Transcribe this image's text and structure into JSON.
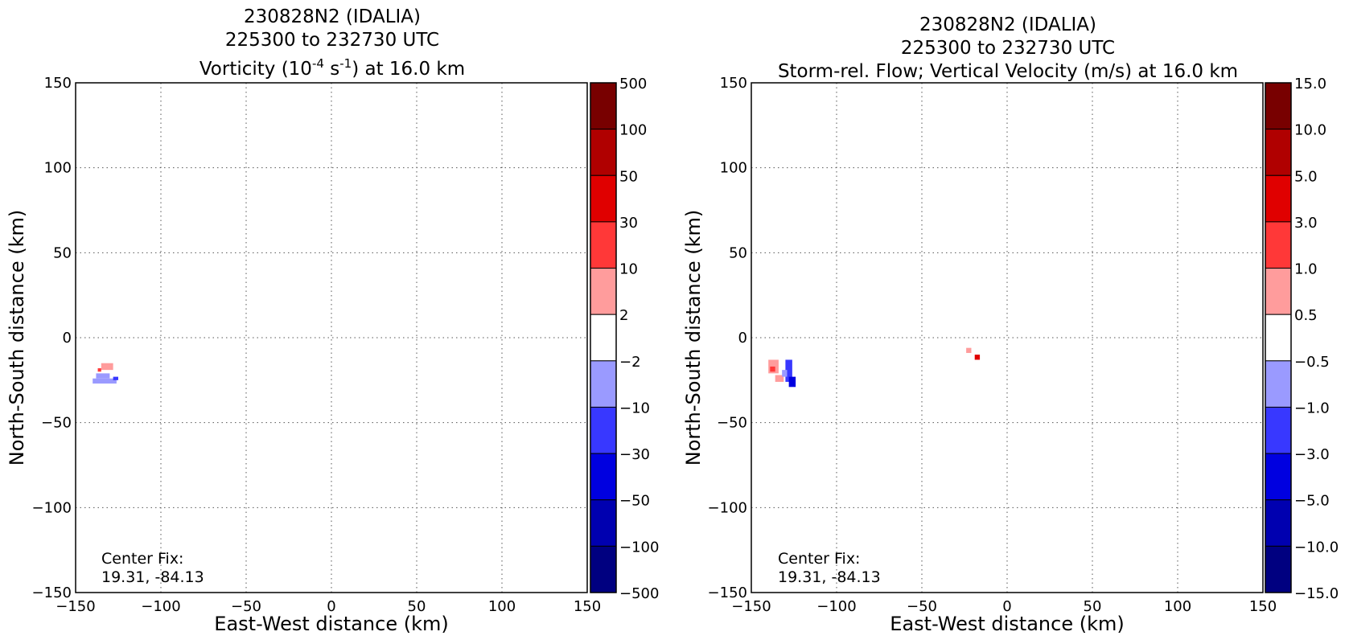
{
  "panels": [
    {
      "title_lines": [
        "230828N2 (IDALIA)",
        "225300 to 232730 UTC"
      ],
      "title_var": {
        "pre": "Vorticity (10",
        "sup1": "-4",
        "mid": " s",
        "sup2": "-1",
        "post": ") at 16.0 km"
      },
      "xlabel": "East-West distance (km)",
      "ylabel": "North-South distance (km)",
      "note": [
        "Center Fix:",
        "19.31, -84.13"
      ]
    },
    {
      "title_lines": [
        "230828N2 (IDALIA)",
        "225300 to 232730 UTC",
        "Storm-rel. Flow; Vertical Velocity (m/s) at 16.0 km"
      ],
      "xlabel": "East-West distance (km)",
      "ylabel": "North-South distance (km)",
      "note": [
        "Center Fix:",
        "19.31, -84.13"
      ]
    }
  ],
  "chart_data": [
    {
      "type": "heatmap",
      "field": "Vorticity",
      "xlim": [
        -150,
        150
      ],
      "ylim": [
        -150,
        150
      ],
      "xticks": [
        "−150",
        "−100",
        "−50",
        "0",
        "50",
        "100",
        "150"
      ],
      "yticks": [
        "150",
        "100",
        "50",
        "0",
        "−50",
        "−100",
        "−150"
      ],
      "grid": true,
      "colorbar": {
        "labels": [
          "500",
          "100",
          "50",
          "30",
          "10",
          "2",
          "−2",
          "−10",
          "−30",
          "−50",
          "−100",
          "−500"
        ],
        "colors": [
          "#780000",
          "#b00000",
          "#e00000",
          "#ff3838",
          "#ff9c9c",
          "#ffffff",
          "#9a9aff",
          "#3838ff",
          "#0000e0",
          "#0000b0",
          "#000080"
        ]
      },
      "patches": [
        {
          "x": [
            -135,
            -128
          ],
          "y": [
            -19,
            -15
          ],
          "color": "#ff9c9c"
        },
        {
          "x": [
            -138,
            -130
          ],
          "y": [
            -24,
            -21
          ],
          "color": "#9a9aff"
        },
        {
          "x": [
            -140,
            -126
          ],
          "y": [
            -27,
            -24
          ],
          "color": "#9a9aff"
        },
        {
          "x": [
            -128,
            -125
          ],
          "y": [
            -25,
            -23
          ],
          "color": "#3838ff"
        },
        {
          "x": [
            -137,
            -135
          ],
          "y": [
            -20,
            -18
          ],
          "color": "#ff3838"
        }
      ]
    },
    {
      "type": "heatmap",
      "field": "Vertical Velocity (m/s)",
      "xlim": [
        -150,
        150
      ],
      "ylim": [
        -150,
        150
      ],
      "xticks": [
        "−150",
        "−100",
        "−50",
        "0",
        "50",
        "100",
        "150"
      ],
      "yticks": [
        "150",
        "100",
        "50",
        "0",
        "−50",
        "−100",
        "−150"
      ],
      "grid": true,
      "colorbar": {
        "labels": [
          "15.0",
          "10.0",
          "5.0",
          "3.0",
          "1.0",
          "0.5",
          "−0.5",
          "−1.0",
          "−3.0",
          "−5.0",
          "−10.0",
          "−15.0"
        ],
        "colors": [
          "#780000",
          "#b00000",
          "#e00000",
          "#ff3838",
          "#ff9c9c",
          "#ffffff",
          "#9a9aff",
          "#3838ff",
          "#0000e0",
          "#0000b0",
          "#000080"
        ]
      },
      "patches": [
        {
          "x": [
            -140,
            -134
          ],
          "y": [
            -21,
            -13
          ],
          "color": "#ff9c9c"
        },
        {
          "x": [
            -139,
            -136
          ],
          "y": [
            -20,
            -17
          ],
          "color": "#ff3838"
        },
        {
          "x": [
            -136,
            -131
          ],
          "y": [
            -26,
            -22
          ],
          "color": "#ff9c9c"
        },
        {
          "x": [
            -130,
            -126
          ],
          "y": [
            -26,
            -13
          ],
          "color": "#3838ff"
        },
        {
          "x": [
            -128,
            -124
          ],
          "y": [
            -29,
            -23
          ],
          "color": "#0000e0"
        },
        {
          "x": [
            -132,
            -129
          ],
          "y": [
            -23,
            -19
          ],
          "color": "#9a9aff"
        },
        {
          "x": [
            -24,
            -21
          ],
          "y": [
            -9,
            -6
          ],
          "color": "#ff9c9c"
        },
        {
          "x": [
            -19,
            -16
          ],
          "y": [
            -13,
            -10
          ],
          "color": "#e00000"
        }
      ]
    }
  ]
}
